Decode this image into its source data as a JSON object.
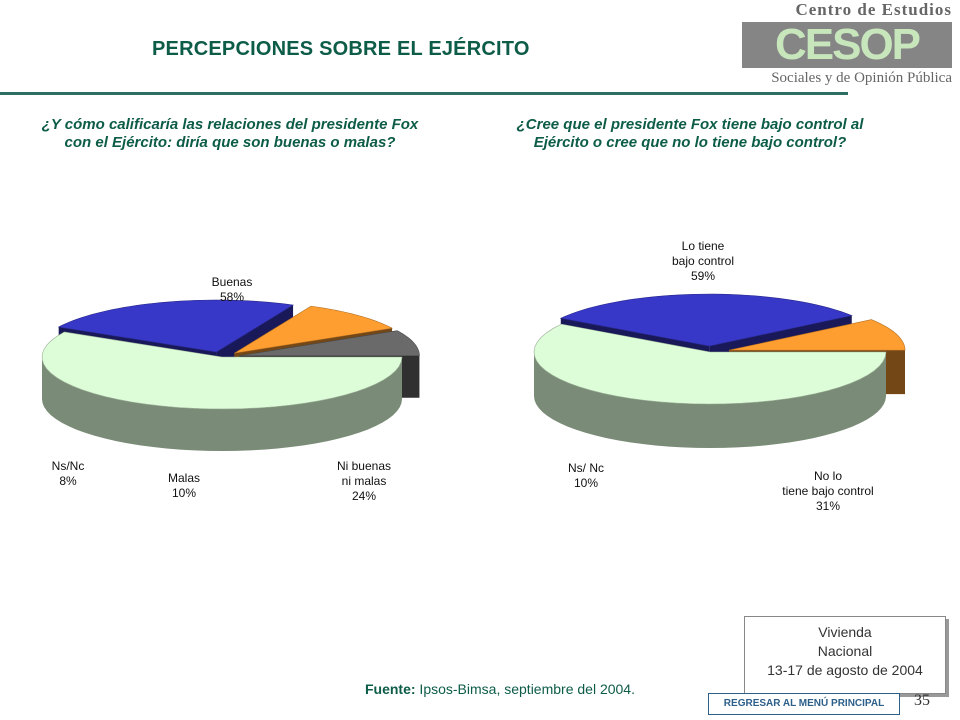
{
  "header": {
    "title": "PERCEPCIONES SOBRE EL EJÉRCITO",
    "logo_top": "Centro de Estudios",
    "logo_mark": "CESOP",
    "logo_bottom": "Sociales y de Opinión Pública"
  },
  "colors": {
    "title_text": "#0d5c48",
    "rule": "#2f6e63"
  },
  "chart_data": [
    {
      "type": "pie",
      "title": "¿Y cómo calificaría las relaciones del presidente Fox con el Ejército: diría que son buenas o malas?",
      "slices": [
        {
          "label": "Buenas",
          "value": 58,
          "display": "58%",
          "color": "#ddfcd8"
        },
        {
          "label": "Ni buenas ni malas",
          "value": 24,
          "display": "24%",
          "color": "#3838c8"
        },
        {
          "label": "Malas",
          "value": 10,
          "display": "10%",
          "color": "#ff9e30"
        },
        {
          "label": "Ns/Nc",
          "value": 8,
          "display": "8%",
          "color": "#6a6a6a"
        }
      ]
    },
    {
      "type": "pie",
      "title": "¿Cree que el presidente Fox tiene bajo control al Ejército o cree que no lo tiene bajo control?",
      "slices": [
        {
          "label": "Lo tiene bajo control",
          "value": 59,
          "display": "59%",
          "color": "#ddfcd8"
        },
        {
          "label": "No lo tiene bajo control",
          "value": 31,
          "display": "31%",
          "color": "#3838c8"
        },
        {
          "label": "Ns/ Nc",
          "value": 10,
          "display": "10%",
          "color": "#ff9e30"
        }
      ]
    }
  ],
  "footer": {
    "source_label": "Fuente:",
    "source_text": " Ipsos-Bimsa, septiembre del 2004.",
    "sample_lines": [
      "Vivienda",
      "Nacional",
      "13-17 de agosto de 2004"
    ],
    "menu_button": "REGRESAR AL MENÚ PRINCIPAL",
    "page_number": "35"
  }
}
